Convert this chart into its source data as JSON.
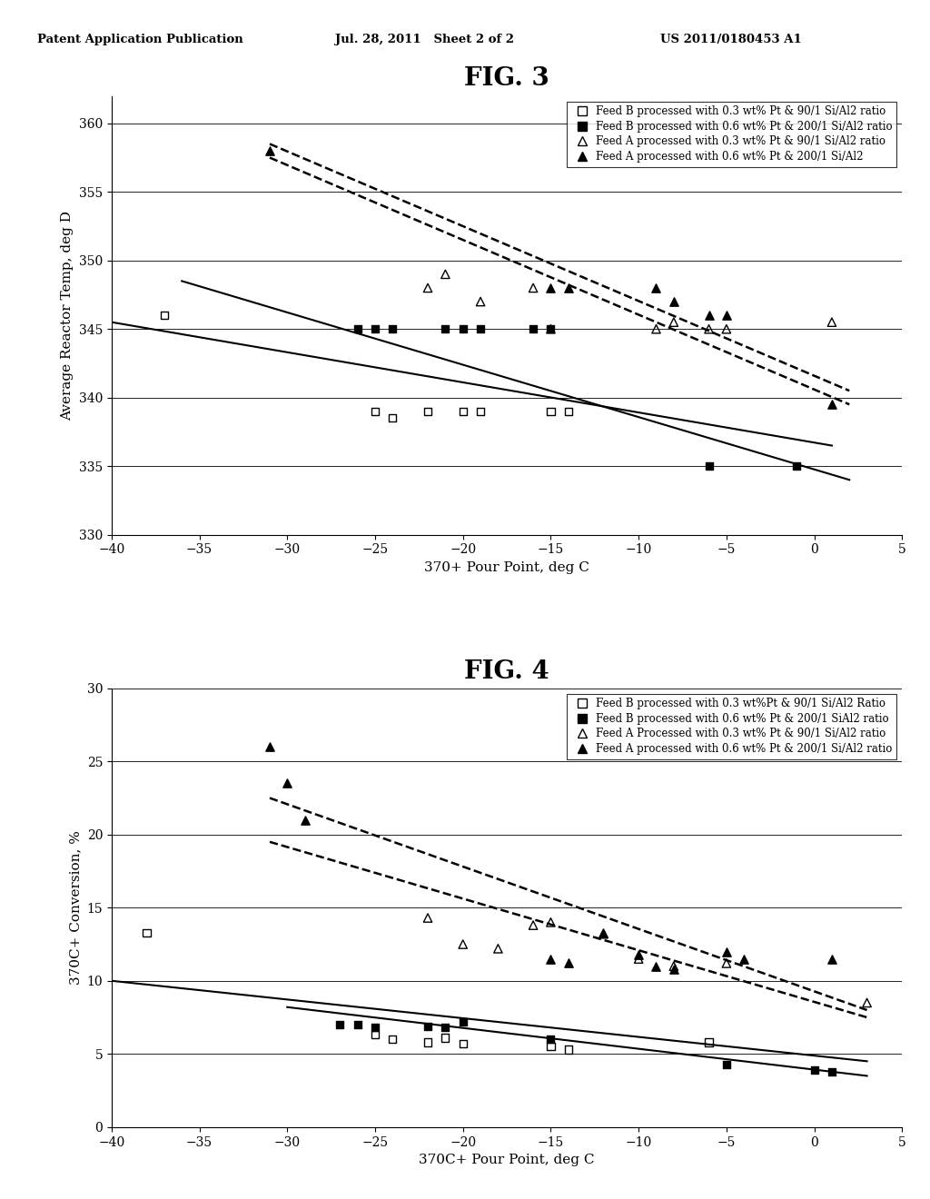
{
  "header_left": "Patent Application Publication",
  "header_center": "Jul. 28, 2011   Sheet 2 of 2",
  "header_right": "US 2011/0180453 A1",
  "fig3": {
    "title": "FIG. 3",
    "xlabel": "370+ Pour Point, deg C",
    "ylabel": "Average Reactor Temp, deg D",
    "xlim": [
      -40,
      5
    ],
    "ylim": [
      330,
      362
    ],
    "yticks": [
      330,
      335,
      340,
      345,
      350,
      355,
      360
    ],
    "xticks": [
      -40,
      -35,
      -30,
      -25,
      -20,
      -15,
      -10,
      -5,
      0,
      5
    ],
    "series": {
      "feedB_03": {
        "label": "Feed B processed with 0.3 wt% Pt & 90/1 Si/Al2 ratio",
        "x": [
          -37,
          -25,
          -24,
          -22,
          -20,
          -19,
          -15,
          -14
        ],
        "y": [
          346.0,
          339.0,
          338.5,
          339.0,
          339.0,
          339.0,
          339.0,
          339.0
        ]
      },
      "feedB_06": {
        "label": "Feed B processed with 0.6 wt% Pt & 200/1 Si/Al2 ratio",
        "x": [
          -26,
          -25,
          -24,
          -21,
          -20,
          -19,
          -16,
          -15,
          -6,
          -1
        ],
        "y": [
          345.0,
          345.0,
          345.0,
          345.0,
          345.0,
          345.0,
          345.0,
          345.0,
          335.0,
          335.0
        ]
      },
      "feedA_03": {
        "label": "Feed A processed with 0.3 wt% Pt & 90/1 Si/Al2 ratio",
        "x": [
          -22,
          -21,
          -19,
          -16,
          -15,
          -9,
          -8,
          -6,
          -5,
          1
        ],
        "y": [
          348.0,
          349.0,
          347.0,
          348.0,
          345.0,
          345.0,
          345.5,
          345.0,
          345.0,
          345.5
        ]
      },
      "feedA_06": {
        "label": "Feed A processed with 0.6 wt% Pt & 200/1 Si/Al2",
        "x": [
          -31,
          -15,
          -14,
          -9,
          -8,
          -6,
          -5,
          1
        ],
        "y": [
          358.0,
          348.0,
          348.0,
          348.0,
          347.0,
          346.0,
          346.0,
          339.5
        ]
      }
    },
    "trendlines": [
      {
        "x": [
          -40,
          1
        ],
        "y": [
          345.5,
          336.5
        ],
        "style": "-",
        "lw": 1.5
      },
      {
        "x": [
          -36,
          2
        ],
        "y": [
          348.5,
          334.0
        ],
        "style": "-",
        "lw": 1.5
      },
      {
        "x": [
          -31,
          2
        ],
        "y": [
          358.5,
          340.5
        ],
        "style": "--",
        "lw": 1.8
      },
      {
        "x": [
          -31,
          2
        ],
        "y": [
          357.5,
          339.5
        ],
        "style": "--",
        "lw": 1.8
      }
    ]
  },
  "fig4": {
    "title": "FIG. 4",
    "xlabel": "370C+ Pour Point, deg C",
    "ylabel": "370C+ Conversion, %",
    "xlim": [
      -40,
      5
    ],
    "ylim": [
      0,
      30
    ],
    "yticks": [
      0,
      5,
      10,
      15,
      20,
      25,
      30
    ],
    "xticks": [
      -40,
      -35,
      -30,
      -25,
      -20,
      -15,
      -10,
      -5,
      0,
      5
    ],
    "series": {
      "feedB_03": {
        "label": "Feed B processed with 0.3 wt%Pt & 90/1 Si/Al2 Ratio",
        "x": [
          -38,
          -25,
          -24,
          -22,
          -21,
          -20,
          -15,
          -14,
          -6
        ],
        "y": [
          13.3,
          6.3,
          6.0,
          5.8,
          6.1,
          5.7,
          5.5,
          5.3,
          5.8
        ]
      },
      "feedB_06": {
        "label": "Feed B processed with 0.6 wt% Pt & 200/1 SiAl2 ratio",
        "x": [
          -27,
          -26,
          -25,
          -22,
          -21,
          -20,
          -15,
          -5,
          0,
          1
        ],
        "y": [
          7.0,
          7.0,
          6.8,
          6.9,
          6.8,
          7.2,
          6.0,
          4.3,
          3.9,
          3.8
        ]
      },
      "feedA_03": {
        "label": "Feed A Processed with 0.3 wt% Pt & 90/1 Si/Al2 ratio",
        "x": [
          -22,
          -20,
          -18,
          -16,
          -15,
          -12,
          -10,
          -8,
          -5,
          3
        ],
        "y": [
          14.3,
          12.5,
          12.2,
          13.8,
          14.0,
          13.2,
          11.5,
          11.0,
          11.2,
          8.5
        ]
      },
      "feedA_06": {
        "label": "Feed A processed with 0.6 wt% Pt & 200/1 Si/Al2 ratio",
        "x": [
          -31,
          -30,
          -29,
          -15,
          -14,
          -12,
          -10,
          -9,
          -8,
          -5,
          -4,
          1
        ],
        "y": [
          26.0,
          23.5,
          21.0,
          11.5,
          11.2,
          13.3,
          11.8,
          11.0,
          10.8,
          12.0,
          11.5,
          11.5
        ]
      }
    },
    "trendlines": [
      {
        "x": [
          -40,
          3
        ],
        "y": [
          10.0,
          4.5
        ],
        "style": "-",
        "lw": 1.5
      },
      {
        "x": [
          -30,
          3
        ],
        "y": [
          8.2,
          3.5
        ],
        "style": "-",
        "lw": 1.5
      },
      {
        "x": [
          -31,
          3
        ],
        "y": [
          19.5,
          7.5
        ],
        "style": "--",
        "lw": 1.8
      },
      {
        "x": [
          -31,
          3
        ],
        "y": [
          22.5,
          8.0
        ],
        "style": "--",
        "lw": 1.8
      }
    ]
  }
}
